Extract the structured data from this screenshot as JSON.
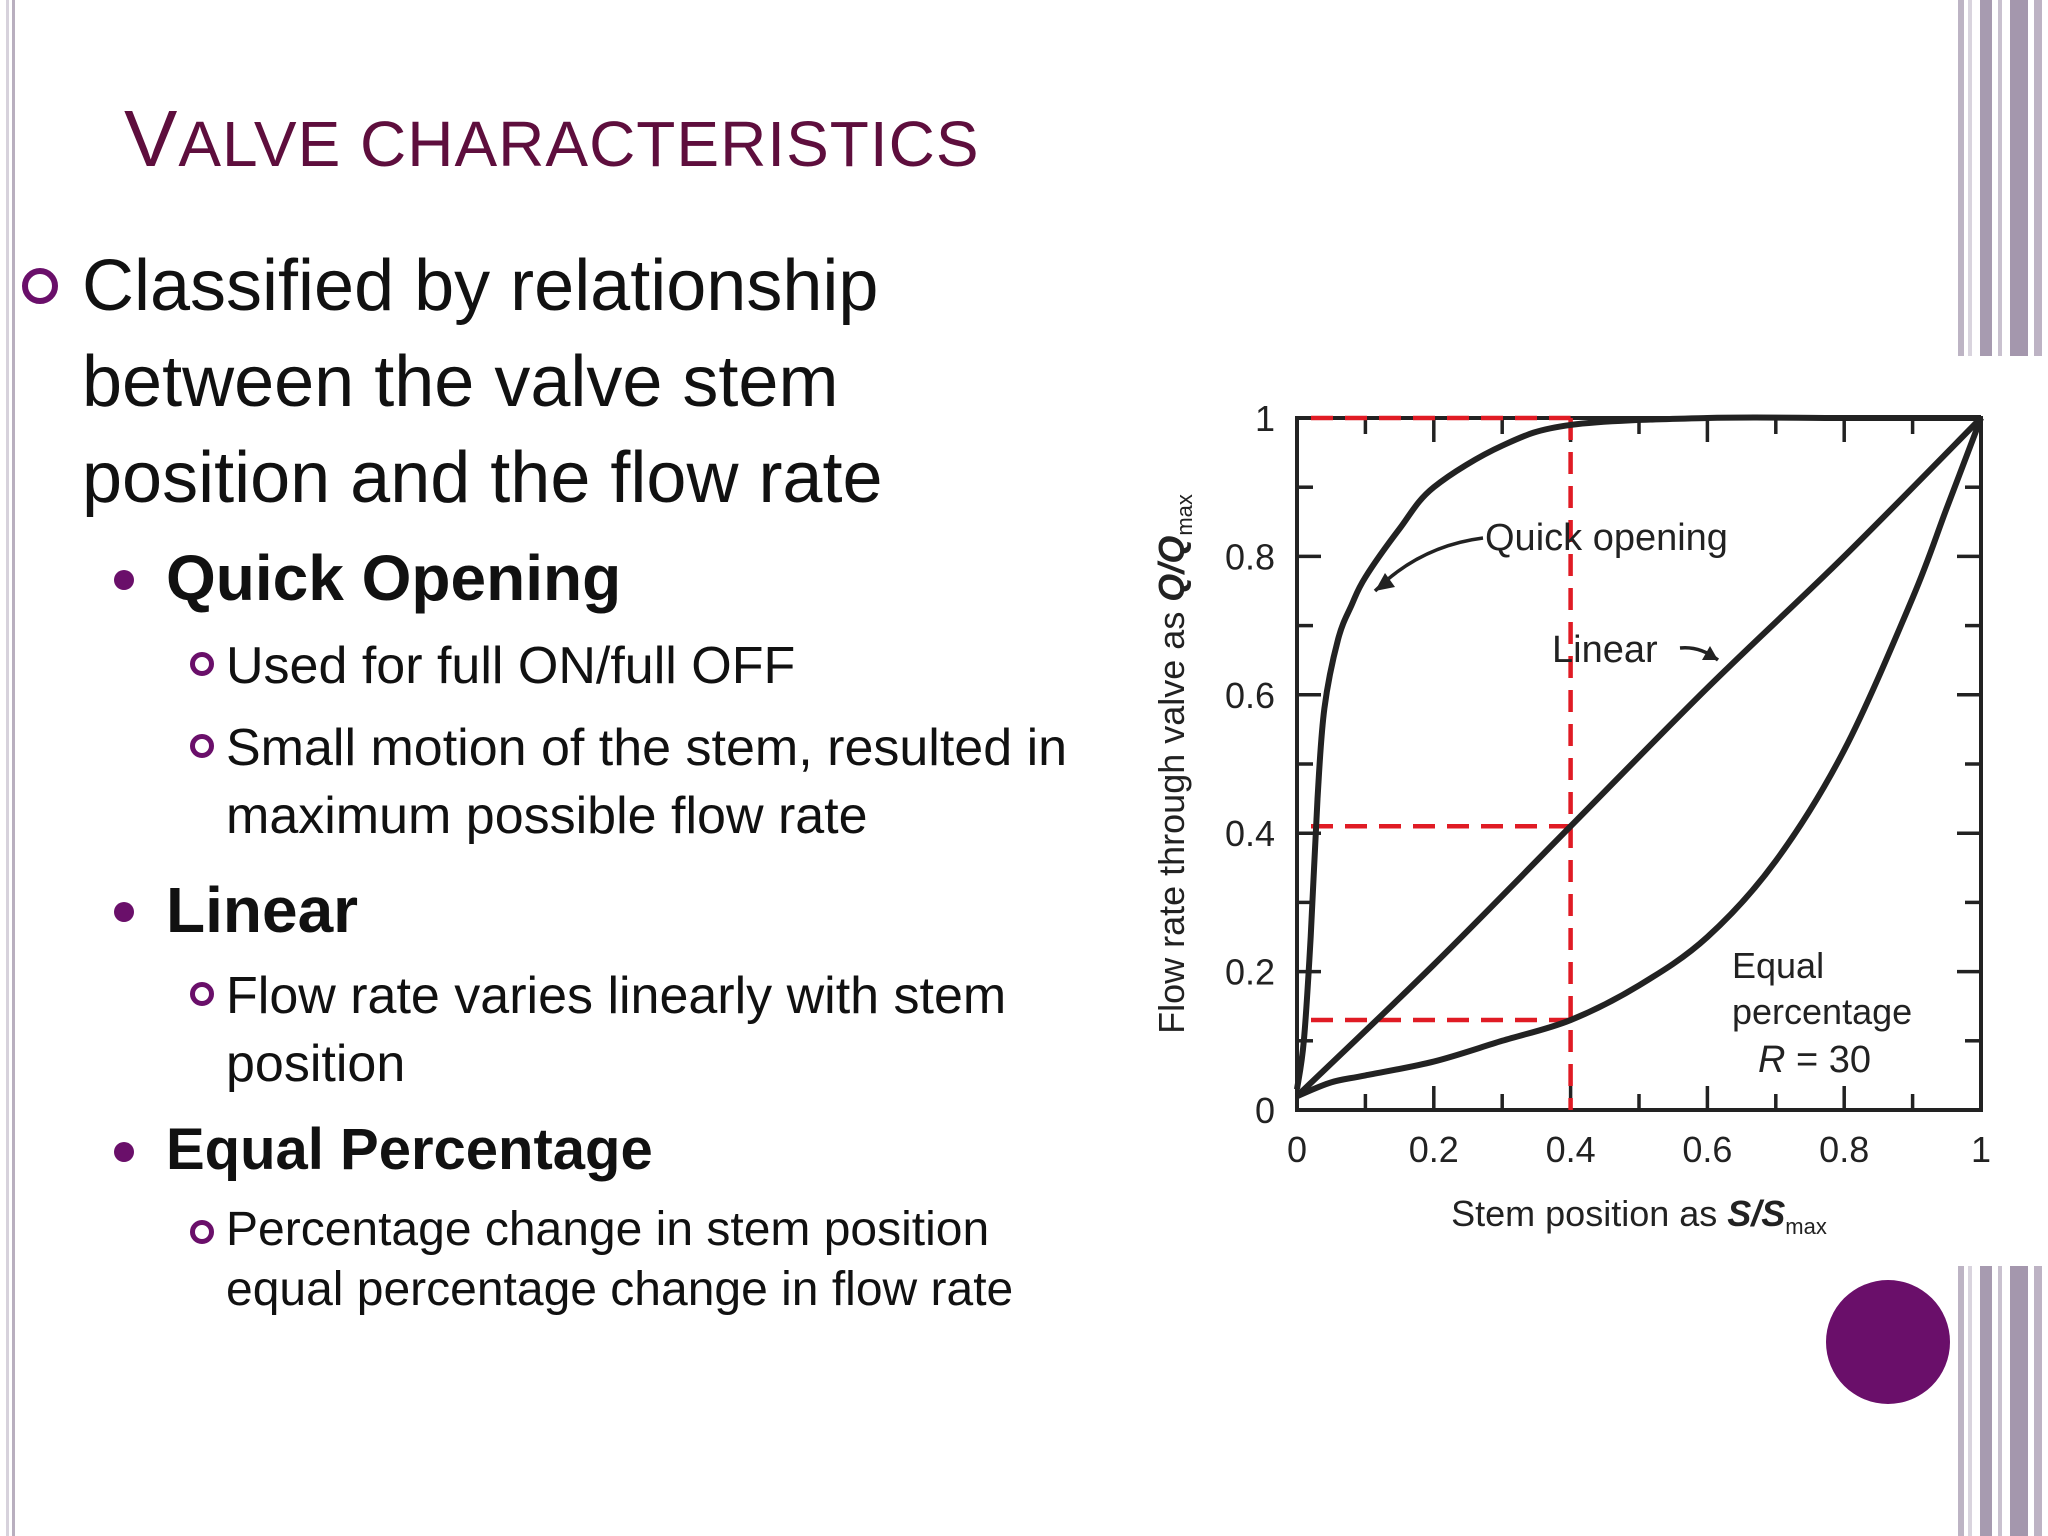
{
  "slide": {
    "title_first": "V",
    "title_rest": "ALVE CHARACTERISTICS",
    "main_point": "Classified by relationship between the valve stem position and the flow rate",
    "items": [
      {
        "heading": "Quick Opening",
        "subs": [
          "Used for full ON/full OFF",
          "Small motion of the stem, resulted in maximum possible flow rate"
        ]
      },
      {
        "heading": "Linear",
        "subs": [
          "Flow rate varies linearly with stem position"
        ]
      },
      {
        "heading": "Equal Percentage",
        "subs": [
          "Percentage change in stem position equal percentage change in flow rate"
        ]
      }
    ]
  },
  "colors": {
    "title": "#5e0e3d",
    "accent": "#6a0f6a",
    "guide_lines": "#e01b24",
    "curve": "#222222"
  },
  "chart_data": {
    "type": "line",
    "xlabel_main": "Stem position as ",
    "xlabel_var": "S/S",
    "xlabel_sub": "max",
    "ylabel_main": "Flow rate through valve as ",
    "ylabel_var": "Q/Q",
    "ylabel_sub": "max",
    "xlim": [
      0,
      1
    ],
    "ylim": [
      0,
      1
    ],
    "x_ticks": [
      "0",
      "0.2",
      "0.4",
      "0.6",
      "0.8",
      "1"
    ],
    "y_ticks": [
      "0",
      "0.2",
      "0.4",
      "0.6",
      "0.8",
      "1"
    ],
    "series": [
      {
        "name": "Quick opening",
        "x": [
          0,
          0.01,
          0.02,
          0.03,
          0.04,
          0.06,
          0.08,
          0.1,
          0.15,
          0.2,
          0.3,
          0.4,
          0.6,
          0.8,
          1
        ],
        "y": [
          0.03,
          0.1,
          0.25,
          0.45,
          0.58,
          0.68,
          0.73,
          0.77,
          0.84,
          0.9,
          0.96,
          0.99,
          1,
          1,
          1
        ]
      },
      {
        "name": "Linear",
        "x": [
          0,
          0.2,
          0.4,
          0.6,
          0.8,
          1
        ],
        "y": [
          0.02,
          0.21,
          0.41,
          0.61,
          0.8,
          1
        ]
      },
      {
        "name": "Equal percentage",
        "x": [
          0,
          0.05,
          0.1,
          0.2,
          0.3,
          0.4,
          0.5,
          0.6,
          0.7,
          0.8,
          0.9,
          0.95,
          1
        ],
        "y": [
          0.02,
          0.04,
          0.05,
          0.07,
          0.1,
          0.13,
          0.18,
          0.25,
          0.36,
          0.52,
          0.74,
          0.87,
          1
        ]
      }
    ],
    "annotations": {
      "quick": "Quick opening",
      "linear": "Linear",
      "equal_line1": "Equal",
      "equal_line2": "percentage",
      "equal_line3_var": "R",
      "equal_line3_rest": " = 30"
    },
    "guides": {
      "x": 0.4,
      "y_levels": [
        1,
        0.41,
        0.13
      ]
    }
  }
}
